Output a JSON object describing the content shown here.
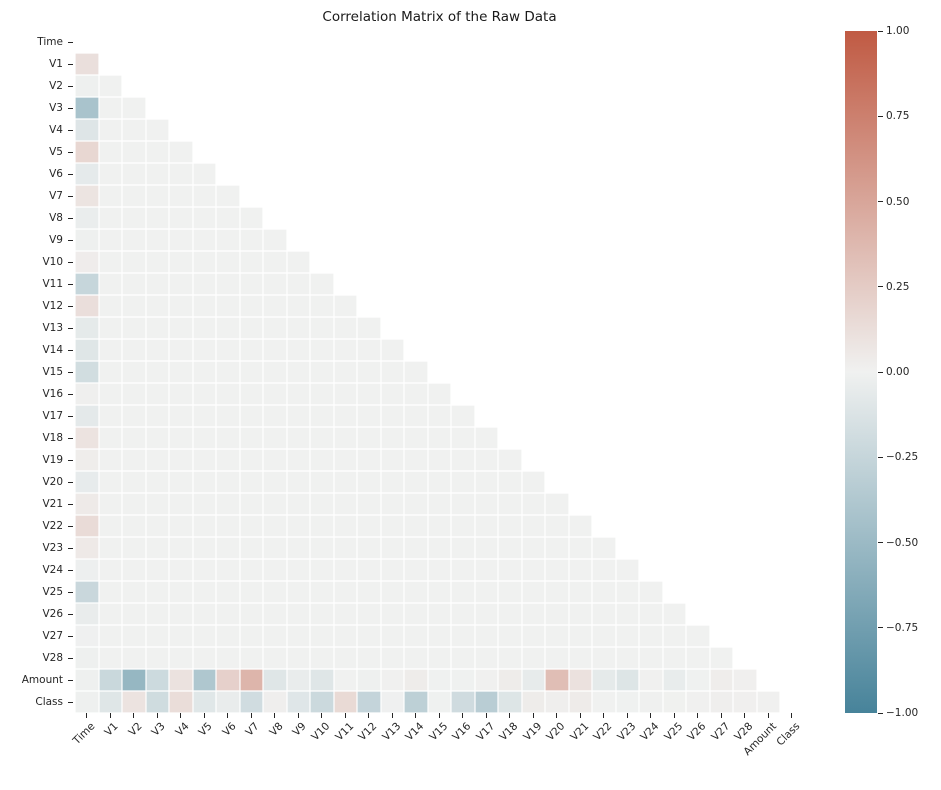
{
  "chart_data": {
    "type": "heatmap",
    "subtype": "correlation-matrix-lower-triangle",
    "title": "Correlation Matrix of the Raw Data",
    "mask": "upper triangle and diagonal hidden (white)",
    "grid": "white 1px lines between cells",
    "legend_position": "colorbar right",
    "value_range": [
      -1,
      1
    ],
    "variables": [
      "Time",
      "V1",
      "V2",
      "V3",
      "V4",
      "V5",
      "V6",
      "V7",
      "V8",
      "V9",
      "V10",
      "V11",
      "V12",
      "V13",
      "V14",
      "V15",
      "V16",
      "V17",
      "V18",
      "V19",
      "V20",
      "V21",
      "V22",
      "V23",
      "V24",
      "V25",
      "V26",
      "V27",
      "V28",
      "Amount",
      "Class"
    ],
    "colormap": {
      "negative_end": "#47839a",
      "center": "#f0f1f0",
      "positive_end": "#c05a43",
      "vmin": -1,
      "vmax": 1
    },
    "colorbar_tick_labels": [
      "1.00",
      "0.75",
      "0.50",
      "0.25",
      "0.00",
      "−0.25",
      "−0.50",
      "−0.75",
      "−1.00"
    ],
    "colorbar_tick_values": [
      1.0,
      0.75,
      0.5,
      0.25,
      0.0,
      -0.25,
      -0.5,
      -0.75,
      -1.0
    ],
    "default_pair_correlation": 0,
    "corr_with_time": {
      "V1": 0.117,
      "V2": -0.011,
      "V3": -0.42,
      "V4": -0.105,
      "V5": 0.173,
      "V6": -0.063,
      "V7": 0.085,
      "V8": -0.037,
      "V9": -0.009,
      "V10": 0.031,
      "V11": -0.248,
      "V12": 0.124,
      "V13": -0.066,
      "V14": -0.099,
      "V15": -0.183,
      "V16": 0.012,
      "V17": -0.073,
      "V18": 0.09,
      "V19": 0.029,
      "V20": -0.051,
      "V21": 0.045,
      "V22": 0.144,
      "V23": 0.051,
      "V24": -0.016,
      "V25": -0.233,
      "V26": -0.041,
      "V27": -0.005,
      "V28": -0.009,
      "Amount": -0.011,
      "Class": -0.012
    },
    "corr_with_amount": {
      "Time": -0.011,
      "V1": -0.228,
      "V2": -0.531,
      "V3": -0.211,
      "V4": 0.099,
      "V5": -0.386,
      "V6": 0.216,
      "V7": 0.397,
      "V8": -0.103,
      "V9": -0.044,
      "V10": -0.102,
      "V11": 0.0,
      "V12": -0.01,
      "V13": 0.005,
      "V14": 0.034,
      "V15": -0.003,
      "V16": -0.004,
      "V17": 0.007,
      "V18": 0.036,
      "V19": -0.056,
      "V20": 0.339,
      "V21": 0.106,
      "V22": -0.065,
      "V23": -0.113,
      "V24": 0.005,
      "V25": -0.048,
      "V26": -0.003,
      "V27": 0.029,
      "V28": 0.01,
      "Class": 0.006
    },
    "corr_with_class": {
      "Time": -0.012,
      "V1": -0.101,
      "V2": 0.091,
      "V3": -0.193,
      "V4": 0.133,
      "V5": -0.095,
      "V6": -0.044,
      "V7": -0.187,
      "V8": 0.02,
      "V9": -0.098,
      "V10": -0.217,
      "V11": 0.155,
      "V12": -0.261,
      "V13": -0.005,
      "V14": -0.303,
      "V15": -0.004,
      "V16": -0.197,
      "V17": -0.326,
      "V18": -0.111,
      "V19": 0.035,
      "V20": 0.02,
      "V21": 0.04,
      "V22": 0.001,
      "V23": -0.003,
      "V24": -0.007,
      "V25": 0.003,
      "V26": 0.004,
      "V27": 0.018,
      "V28": 0.01,
      "Amount": 0.006
    }
  }
}
